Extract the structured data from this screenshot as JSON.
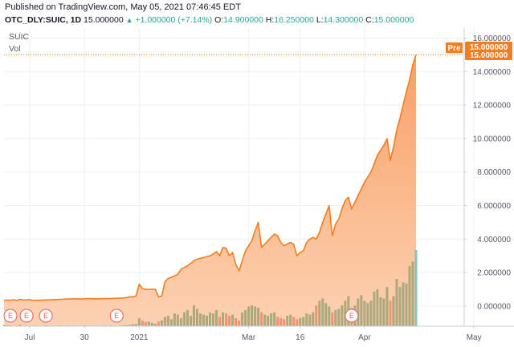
{
  "header": {
    "published": "Published on TradingView.com, May 05, 2021 07:46:45 EDT",
    "symbol": "OTC_DLY:SUIC, 1D",
    "last": "15.000000",
    "change": "+1.000000 (+7.14%)",
    "open_label": "O:",
    "open": "14.900000",
    "high_label": "H:",
    "high": "16.250000",
    "low_label": "L:",
    "low": "14.300000",
    "close_label": "C:",
    "close": "15.000000",
    "up_icon": "triangle-up-icon"
  },
  "colors": {
    "line": "#f57c1f",
    "area_top": "#f9a066",
    "area_bottom": "#fcd2b3",
    "vol_up": "#a6a77a",
    "vol_down": "#f28f6e",
    "vol_last": "#84c1b7",
    "grid": "#eef0f3",
    "tag": "#f57c1f",
    "event": "#e55e5e"
  },
  "chart_data": {
    "type": "area",
    "legend": [
      "SUIC",
      "Vol"
    ],
    "pre_label": "Pre",
    "price_tag": "15.000000",
    "earnings_marker": "E",
    "y_ticks": [
      "16.000000",
      "14.000000",
      "12.000000",
      "10.000000",
      "8.000000",
      "6.000000",
      "4.000000",
      "2.000000",
      "0.000000"
    ],
    "ylim": [
      -1.2,
      16.6
    ],
    "x_tick_labels": [
      "Jul",
      "30",
      "2021",
      "Mar",
      "16",
      "Apr",
      "May"
    ],
    "x_ticks_index": [
      8,
      25,
      42,
      76,
      92,
      112,
      146
    ],
    "earnings_index": [
      2,
      7,
      13,
      35,
      108
    ],
    "vol_max": 3.3,
    "close": [
      0.35,
      0.35,
      0.35,
      0.38,
      0.33,
      0.4,
      0.36,
      0.37,
      0.38,
      0.34,
      0.35,
      0.35,
      0.36,
      0.37,
      0.37,
      0.38,
      0.38,
      0.4,
      0.4,
      0.42,
      0.42,
      0.43,
      0.43,
      0.43,
      0.42,
      0.43,
      0.44,
      0.44,
      0.43,
      0.43,
      0.44,
      0.45,
      0.45,
      0.45,
      0.46,
      0.46,
      0.47,
      0.48,
      0.5,
      0.55,
      0.55,
      0.6,
      1.3,
      1.05,
      1.0,
      1.0,
      1.0,
      1.0,
      0.55,
      0.6,
      1.45,
      1.65,
      1.72,
      1.8,
      1.9,
      2.2,
      2.3,
      2.4,
      2.55,
      2.7,
      2.8,
      2.85,
      2.9,
      2.95,
      3.0,
      3.1,
      3.25,
      3.0,
      3.5,
      3.45,
      3.0,
      3.2,
      2.5,
      2.1,
      2.7,
      3.3,
      3.6,
      3.9,
      4.5,
      5.0,
      3.5,
      3.7,
      3.9,
      4.1,
      4.3,
      4.2,
      3.8,
      3.6,
      3.7,
      3.8,
      3.7,
      3.0,
      3.2,
      3.3,
      3.8,
      4.0,
      4.1,
      4.0,
      4.4,
      5.0,
      5.5,
      6.0,
      4.2,
      4.9,
      5.2,
      5.8,
      6.3,
      6.5,
      5.8,
      6.2,
      6.6,
      7.0,
      7.4,
      7.7,
      8.0,
      8.5,
      9.0,
      9.3,
      9.6,
      10.0,
      8.7,
      9.5,
      10.5,
      11.2,
      12.0,
      12.8,
      13.5,
      14.4,
      15.0
    ],
    "volume": [
      0.05,
      0.04,
      0.03,
      0.02,
      0.03,
      0.06,
      0.02,
      0.03,
      0.02,
      0.02,
      0.03,
      0.02,
      0.02,
      0.03,
      0.02,
      0.02,
      0.02,
      0.03,
      0.02,
      0.02,
      0.03,
      0.02,
      0.03,
      0.02,
      0.02,
      0.03,
      0.02,
      0.02,
      0.03,
      0.02,
      0.02,
      0.03,
      0.02,
      0.03,
      0.02,
      0.02,
      0.03,
      0.04,
      0.05,
      0.06,
      0.08,
      0.1,
      0.35,
      0.25,
      0.18,
      0.2,
      0.15,
      0.1,
      0.2,
      0.25,
      0.4,
      0.45,
      0.3,
      0.55,
      0.5,
      0.35,
      0.6,
      0.7,
      0.45,
      0.9,
      0.75,
      0.55,
      0.5,
      0.45,
      0.6,
      0.55,
      0.7,
      0.4,
      0.6,
      0.55,
      0.45,
      0.5,
      0.35,
      0.25,
      0.6,
      0.7,
      0.85,
      0.9,
      0.85,
      0.8,
      0.6,
      0.5,
      0.45,
      0.55,
      0.6,
      0.4,
      0.35,
      0.3,
      0.45,
      0.5,
      0.4,
      0.3,
      0.35,
      0.4,
      0.55,
      0.5,
      0.6,
      0.9,
      1.1,
      1.2,
      1.0,
      0.85,
      0.6,
      0.7,
      0.75,
      0.9,
      1.1,
      1.3,
      0.8,
      0.9,
      1.2,
      1.35,
      1.1,
      1.0,
      1.1,
      1.5,
      1.6,
      1.25,
      1.2,
      1.7,
      1.1,
      1.3,
      2.05,
      1.7,
      1.9,
      1.85,
      2.6,
      2.8,
      3.3
    ]
  }
}
